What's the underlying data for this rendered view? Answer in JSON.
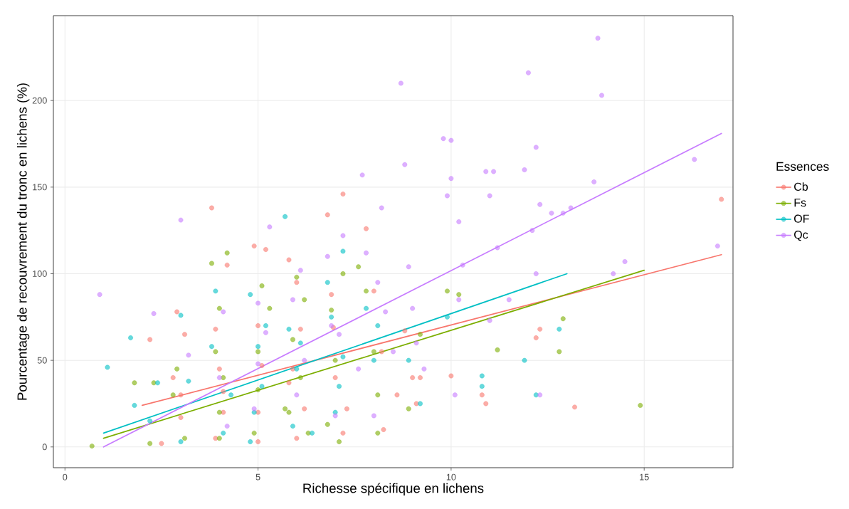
{
  "chart_data": {
    "type": "scatter",
    "xlabel": "Richesse spécifique en lichens",
    "ylabel": "Pourcentage de recouvrement du tronc en lichens (%)",
    "legend_title": "Essences",
    "legend": "right",
    "grid": true,
    "marker": "circle",
    "xlim": [
      -0.3,
      17.3
    ],
    "ylim": [
      -12,
      249
    ],
    "xticks": [
      0,
      5,
      10,
      15
    ],
    "yticks": [
      0,
      50,
      100,
      150,
      200
    ],
    "series": [
      {
        "name": "Cb",
        "color": "#f8766d",
        "x": [
          2.2,
          2.9,
          3.1,
          3.8,
          4.2,
          3.9,
          4,
          4.1,
          3.9,
          2.8,
          3,
          2.5,
          4.9,
          5.2,
          5,
          5.1,
          5,
          5,
          5.8,
          6,
          6.1,
          5.9,
          5.8,
          6.2,
          6,
          6.8,
          7.2,
          6.9,
          6.95,
          7,
          7.2,
          7.8,
          8,
          8.2,
          8.25,
          8.8,
          9,
          9.2,
          9.1,
          10,
          10.8,
          10.9,
          12.2,
          12.3,
          13.2,
          17,
          7.3,
          8.6,
          3,
          4.1
        ],
        "values": [
          62,
          78,
          65,
          138,
          105,
          68,
          45,
          32,
          5,
          40,
          30,
          2,
          116,
          114,
          70,
          47,
          20,
          3,
          108,
          95,
          68,
          45,
          37,
          22,
          5,
          134,
          146,
          88,
          69,
          40,
          8,
          126,
          90,
          55,
          10,
          67,
          40,
          40,
          25,
          41,
          30,
          25,
          63,
          68,
          23,
          143,
          22,
          30,
          17,
          20
        ]
      },
      {
        "name": "Fs",
        "color": "#7cae00",
        "x": [
          0.7,
          1.8,
          2.2,
          2.3,
          2.9,
          3.1,
          2.8,
          3.8,
          4.2,
          4,
          3.9,
          4.1,
          4,
          4,
          5.1,
          5.3,
          5,
          5,
          4.9,
          6,
          6.2,
          5.9,
          6.1,
          5.8,
          6.3,
          7.2,
          6.9,
          7,
          6.8,
          7.1,
          7.8,
          8,
          8.1,
          8.1,
          8.9,
          9.2,
          9.9,
          10.2,
          11.2,
          12.8,
          12.9,
          14.9,
          7.6,
          5.7
        ],
        "values": [
          0.5,
          37,
          2,
          37,
          45,
          5,
          30,
          106,
          112,
          80,
          55,
          40,
          20,
          5,
          93,
          80,
          55,
          33,
          8,
          98,
          85,
          62,
          40,
          20,
          8,
          100,
          79,
          50,
          13,
          3,
          90,
          55,
          30,
          8,
          22,
          65,
          90,
          88,
          56,
          55,
          74,
          24,
          104,
          22
        ]
      },
      {
        "name": "OF",
        "color": "#00bfc4",
        "x": [
          1.1,
          1.7,
          1.8,
          2.2,
          2.4,
          3,
          3.2,
          3,
          3.9,
          3.8,
          4.3,
          4.1,
          4.8,
          5.2,
          5,
          5.1,
          4.9,
          5.7,
          5.8,
          6.1,
          6,
          5.9,
          6.8,
          7.2,
          6.9,
          7.2,
          7.1,
          7,
          7.8,
          8.1,
          8,
          8.9,
          9.2,
          9.9,
          10.8,
          10.8,
          11.9,
          12.2,
          12.8,
          4.8,
          6.4
        ],
        "values": [
          46,
          63,
          24,
          15,
          37,
          76,
          38,
          3,
          90,
          58,
          30,
          8,
          88,
          70,
          58,
          35,
          20,
          133,
          68,
          60,
          45,
          12,
          95,
          113,
          75,
          52,
          35,
          20,
          80,
          70,
          50,
          50,
          25,
          75,
          41,
          35,
          50,
          30,
          68,
          3,
          8
        ]
      },
      {
        "name": "Qc",
        "color": "#c77cff",
        "x": [
          0.9,
          2.3,
          3,
          3.2,
          4.1,
          4,
          4.2,
          5,
          5.3,
          5,
          4.9,
          5.2,
          5.9,
          6.1,
          6.2,
          6,
          6.8,
          6.9,
          7.2,
          7.1,
          7,
          7.7,
          7.8,
          8.2,
          8.1,
          8.3,
          8,
          8.7,
          8.8,
          8.9,
          9,
          9.1,
          9.8,
          10,
          9.9,
          10,
          10.2,
          10.3,
          10.2,
          10.1,
          10.9,
          11,
          11.1,
          11.2,
          11,
          11.5,
          11.9,
          12,
          12.1,
          12.2,
          12.3,
          12.2,
          12.3,
          12.9,
          13.1,
          13.7,
          13.8,
          13.9,
          14.2,
          14.5,
          16.3,
          16.9,
          12.6,
          8.5,
          9.3,
          7.6
        ],
        "values": [
          88,
          77,
          131,
          53,
          78,
          40,
          12,
          83,
          127,
          48,
          22,
          66,
          85,
          102,
          50,
          30,
          110,
          70,
          122,
          65,
          18,
          157,
          112,
          138,
          95,
          78,
          18,
          210,
          163,
          104,
          80,
          60,
          178,
          177,
          145,
          155,
          130,
          105,
          85,
          30,
          159,
          145,
          159,
          115,
          73,
          85,
          160,
          216,
          125,
          173,
          140,
          100,
          30,
          135,
          138,
          153,
          236,
          203,
          100,
          107,
          166,
          116,
          135,
          55,
          45,
          45
        ]
      },
      {
        "type": "line",
        "marker": "none",
        "color": "#f8766d",
        "x": [
          2,
          17
        ],
        "values": [
          24,
          111
        ]
      },
      {
        "type": "line",
        "marker": "none",
        "color": "#7cae00",
        "x": [
          1,
          15
        ],
        "values": [
          5,
          102
        ]
      },
      {
        "type": "line",
        "marker": "none",
        "color": "#00bfc4",
        "x": [
          1,
          13
        ],
        "values": [
          8,
          100
        ]
      },
      {
        "type": "line",
        "marker": "none",
        "color": "#c77cff",
        "x": [
          1,
          17
        ],
        "values": [
          0,
          181
        ]
      }
    ]
  }
}
